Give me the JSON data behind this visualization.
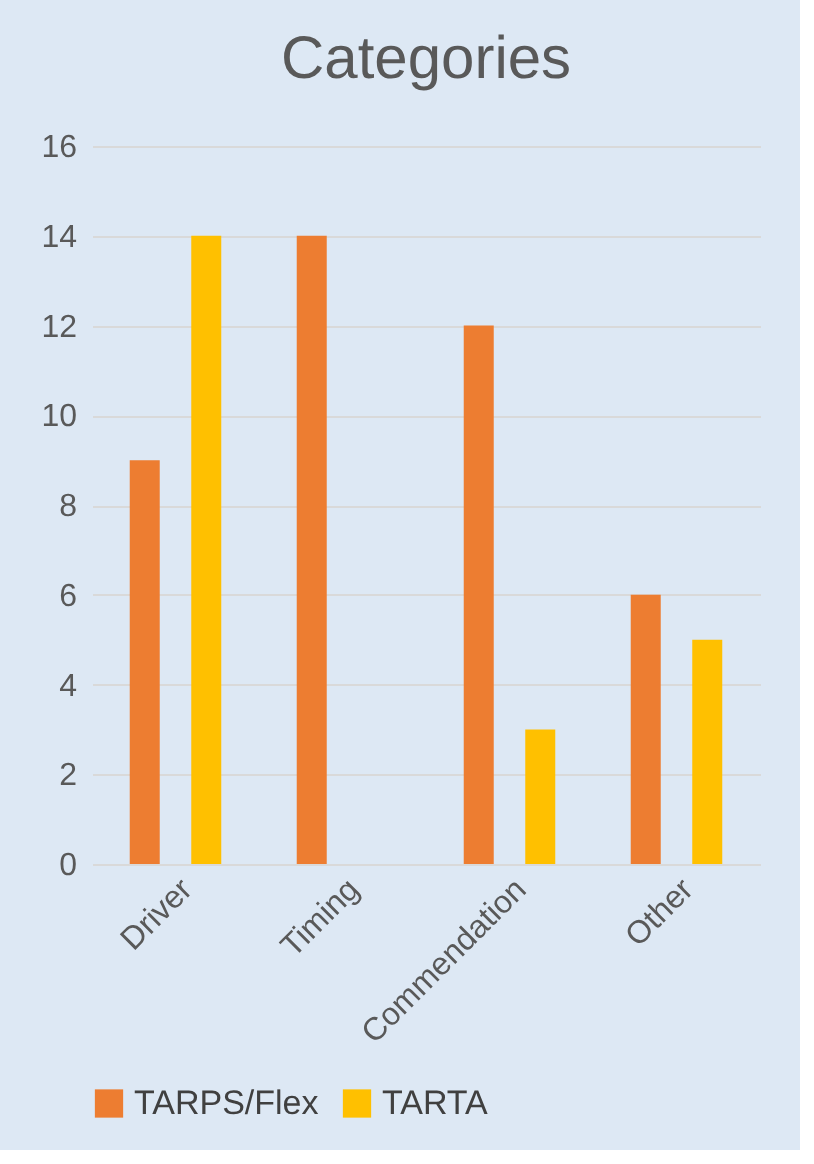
{
  "chart_data": {
    "type": "bar",
    "title": "Categories",
    "categories": [
      "Driver",
      "Timing",
      "Commendation",
      "Other"
    ],
    "series": [
      {
        "name": "TARPS/Flex",
        "color": "#ed7d31",
        "values": [
          9,
          14,
          12,
          6
        ]
      },
      {
        "name": "TARTA",
        "color": "#ffc000",
        "values": [
          14,
          0,
          3,
          5
        ]
      }
    ],
    "ylim": [
      0,
      16
    ],
    "yticks": [
      0,
      2,
      4,
      6,
      8,
      10,
      12,
      14,
      16
    ],
    "grid": "y",
    "legend": "bottom"
  }
}
